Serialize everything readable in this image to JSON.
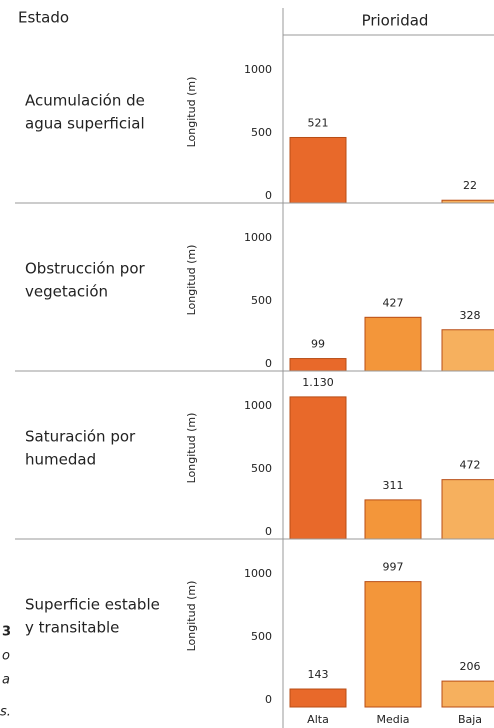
{
  "header": {
    "left": "Estado",
    "right": "Prioridad"
  },
  "caption_fragments": [
    "3",
    "o",
    "a",
    "s."
  ],
  "chart_data": [
    {
      "type": "bar",
      "title": [
        "Acumulación de",
        "agua superficial"
      ],
      "ylabel": "Longitud (m)",
      "values": [
        521,
        null,
        22
      ],
      "colors": [
        "#e8692a",
        "#f3963a",
        "#f6b05e"
      ],
      "ylim": [
        0,
        1320
      ],
      "yticks": [
        0,
        500,
        1000
      ],
      "grid": false
    },
    {
      "type": "bar",
      "title": [
        "Obstrucción por",
        "vegetación"
      ],
      "ylabel": "Longitud (m)",
      "values": [
        99,
        427,
        328
      ],
      "colors": [
        "#e8692a",
        "#f3963a",
        "#f6b05e"
      ],
      "ylim": [
        0,
        1320
      ],
      "yticks": [
        0,
        500,
        1000
      ],
      "grid": false
    },
    {
      "type": "bar",
      "title": [
        "Saturación por",
        "humedad"
      ],
      "ylabel": "Longitud (m)",
      "values": [
        1130,
        311,
        472
      ],
      "value_labels": [
        "1.130",
        "311",
        "472"
      ],
      "colors": [
        "#e8692a",
        "#f3963a",
        "#f6b05e"
      ],
      "ylim": [
        0,
        1320
      ],
      "yticks": [
        0,
        500,
        1000
      ],
      "grid": false
    },
    {
      "type": "bar",
      "title": [
        "Superficie estable",
        "y transitable"
      ],
      "ylabel": "Longitud (m)",
      "categories": [
        "Alta",
        "Media",
        "Baja"
      ],
      "values": [
        143,
        997,
        206
      ],
      "colors": [
        "#e8692a",
        "#f3963a",
        "#f6b05e"
      ],
      "ylim": [
        0,
        1320
      ],
      "yticks": [
        0,
        500,
        1000
      ],
      "grid": false
    }
  ]
}
